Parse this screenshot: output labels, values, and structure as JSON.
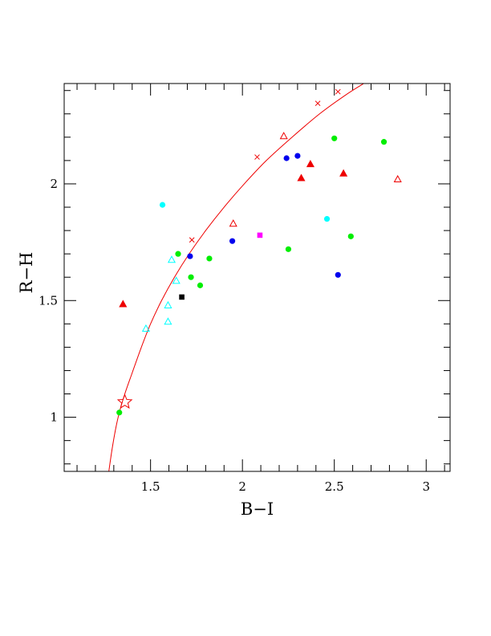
{
  "chart_data": {
    "type": "scatter",
    "xlabel": "B−I",
    "ylabel": "R−H",
    "xlim": [
      1.03,
      3.13
    ],
    "ylim": [
      0.768,
      2.43
    ],
    "x_ticks": [
      {
        "value": 1.5,
        "label": "1.5"
      },
      {
        "value": 2,
        "label": "2"
      },
      {
        "value": 2.5,
        "label": "2.5"
      },
      {
        "value": 3,
        "label": "3"
      }
    ],
    "y_ticks": [
      {
        "value": 1,
        "label": "1"
      },
      {
        "value": 1.5,
        "label": "1.5"
      },
      {
        "value": 2,
        "label": "2"
      }
    ],
    "x_minor_step": 0.1,
    "y_minor_step": 0.1,
    "grid": false,
    "colors": {
      "green": "#00ee00",
      "blue": "#0000ee",
      "cyan": "#00ffff",
      "red": "#ee0000",
      "black": "#000000",
      "magenta": "#ff00ff"
    },
    "curve": {
      "color": "#ee0000",
      "points": [
        [
          1.273,
          0.768
        ],
        [
          1.29,
          0.86
        ],
        [
          1.31,
          0.95
        ],
        [
          1.33,
          1.02
        ],
        [
          1.36,
          1.1
        ],
        [
          1.4,
          1.19
        ],
        [
          1.45,
          1.3
        ],
        [
          1.5,
          1.4
        ],
        [
          1.56,
          1.5
        ],
        [
          1.63,
          1.6
        ],
        [
          1.71,
          1.7
        ],
        [
          1.8,
          1.8
        ],
        [
          1.9,
          1.9
        ],
        [
          2.01,
          2.0
        ],
        [
          2.13,
          2.1
        ],
        [
          2.27,
          2.2
        ],
        [
          2.42,
          2.3
        ],
        [
          2.56,
          2.38
        ],
        [
          2.66,
          2.43
        ]
      ],
      "cross_markers": [
        [
          1.725,
          1.76
        ],
        [
          2.08,
          2.115
        ],
        [
          2.41,
          2.345
        ],
        [
          2.52,
          2.395
        ]
      ]
    },
    "star_marker": {
      "x": 1.36,
      "y": 1.065,
      "color": "#ee0000"
    },
    "points": [
      {
        "x": 1.33,
        "y": 1.02,
        "marker": "circle",
        "color": "#00ee00"
      },
      {
        "x": 1.65,
        "y": 1.7,
        "marker": "circle",
        "color": "#00ee00"
      },
      {
        "x": 1.72,
        "y": 1.6,
        "marker": "circle",
        "color": "#00ee00"
      },
      {
        "x": 1.77,
        "y": 1.565,
        "marker": "circle",
        "color": "#00ee00"
      },
      {
        "x": 1.82,
        "y": 1.68,
        "marker": "circle",
        "color": "#00ee00"
      },
      {
        "x": 2.25,
        "y": 1.72,
        "marker": "circle",
        "color": "#00ee00"
      },
      {
        "x": 2.5,
        "y": 2.195,
        "marker": "circle",
        "color": "#00ee00"
      },
      {
        "x": 2.59,
        "y": 1.775,
        "marker": "circle",
        "color": "#00ee00"
      },
      {
        "x": 2.77,
        "y": 2.18,
        "marker": "circle",
        "color": "#00ee00"
      },
      {
        "x": 1.715,
        "y": 1.69,
        "marker": "circle",
        "color": "#0000ee"
      },
      {
        "x": 1.945,
        "y": 1.755,
        "marker": "circle",
        "color": "#0000ee"
      },
      {
        "x": 2.24,
        "y": 2.11,
        "marker": "circle",
        "color": "#0000ee"
      },
      {
        "x": 2.3,
        "y": 2.12,
        "marker": "circle",
        "color": "#0000ee"
      },
      {
        "x": 2.52,
        "y": 1.61,
        "marker": "circle",
        "color": "#0000ee"
      },
      {
        "x": 1.565,
        "y": 1.91,
        "marker": "circle",
        "color": "#00ffff"
      },
      {
        "x": 2.46,
        "y": 1.85,
        "marker": "circle",
        "color": "#00ffff"
      },
      {
        "x": 1.475,
        "y": 1.38,
        "marker": "triangle-open",
        "color": "#00ffff"
      },
      {
        "x": 1.595,
        "y": 1.41,
        "marker": "triangle-open",
        "color": "#00ffff"
      },
      {
        "x": 1.595,
        "y": 1.48,
        "marker": "triangle-open",
        "color": "#00ffff"
      },
      {
        "x": 1.615,
        "y": 1.675,
        "marker": "triangle-open",
        "color": "#00ffff"
      },
      {
        "x": 1.64,
        "y": 1.585,
        "marker": "triangle-open",
        "color": "#00ffff"
      },
      {
        "x": 1.35,
        "y": 1.485,
        "marker": "triangle-filled",
        "color": "#ee0000"
      },
      {
        "x": 2.32,
        "y": 2.025,
        "marker": "triangle-filled",
        "color": "#ee0000"
      },
      {
        "x": 2.37,
        "y": 2.085,
        "marker": "triangle-filled",
        "color": "#ee0000"
      },
      {
        "x": 2.55,
        "y": 2.045,
        "marker": "triangle-filled",
        "color": "#ee0000"
      },
      {
        "x": 1.95,
        "y": 1.83,
        "marker": "triangle-open",
        "color": "#ee0000"
      },
      {
        "x": 2.225,
        "y": 2.205,
        "marker": "triangle-open",
        "color": "#ee0000"
      },
      {
        "x": 2.845,
        "y": 2.02,
        "marker": "triangle-open",
        "color": "#ee0000"
      },
      {
        "x": 1.67,
        "y": 1.515,
        "marker": "square",
        "color": "#000000"
      },
      {
        "x": 2.095,
        "y": 1.78,
        "marker": "square",
        "color": "#ff00ff"
      }
    ]
  }
}
